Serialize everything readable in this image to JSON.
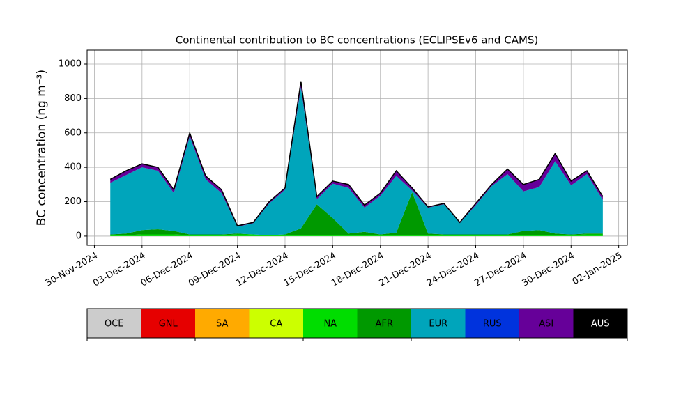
{
  "chart_data": {
    "type": "stacked_area",
    "title": "Continental contribution to BC concentrations (ECLIPSEv6 and CAMS)",
    "y_label": "BC concentration (ng m⁻³)",
    "x": [
      "2024-12-01",
      "2024-12-02",
      "2024-12-03",
      "2024-12-04",
      "2024-12-05",
      "2024-12-06",
      "2024-12-07",
      "2024-12-08",
      "2024-12-09",
      "2024-12-10",
      "2024-12-11",
      "2024-12-12",
      "2024-12-13",
      "2024-12-14",
      "2024-12-15",
      "2024-12-16",
      "2024-12-17",
      "2024-12-18",
      "2024-12-19",
      "2024-12-20",
      "2024-12-21",
      "2024-12-22",
      "2024-12-23",
      "2024-12-24",
      "2024-12-25",
      "2024-12-26",
      "2024-12-27",
      "2024-12-28",
      "2024-12-29",
      "2024-12-30",
      "2024-12-31",
      "2025-01-01"
    ],
    "series": [
      {
        "name": "OCE",
        "color": "#cccccc",
        "values": [
          0,
          0,
          0,
          0,
          0,
          0,
          0,
          0,
          0,
          0,
          0,
          0,
          0,
          0,
          0,
          0,
          0,
          0,
          0,
          0,
          0,
          0,
          0,
          0,
          0,
          0,
          0,
          0,
          0,
          0,
          0,
          0
        ]
      },
      {
        "name": "GNL",
        "color": "#e60000",
        "values": [
          0,
          0,
          0,
          0,
          0,
          0,
          0,
          0,
          0,
          0,
          0,
          0,
          0,
          0,
          0,
          0,
          0,
          0,
          0,
          0,
          0,
          0,
          0,
          0,
          0,
          0,
          0,
          0,
          0,
          0,
          0,
          0
        ]
      },
      {
        "name": "SA",
        "color": "#ffaa00",
        "values": [
          0,
          0,
          0,
          0,
          0,
          0,
          0,
          0,
          0,
          0,
          0,
          0,
          0,
          0,
          0,
          0,
          0,
          0,
          0,
          0,
          0,
          0,
          0,
          0,
          0,
          0,
          0,
          0,
          0,
          0,
          0,
          0
        ]
      },
      {
        "name": "CA",
        "color": "#ccff00",
        "values": [
          0,
          0,
          0,
          0,
          0,
          0,
          0,
          0,
          0,
          0,
          0,
          0,
          0,
          0,
          0,
          0,
          0,
          0,
          0,
          0,
          0,
          0,
          0,
          0,
          0,
          0,
          0,
          0,
          0,
          0,
          0,
          0
        ]
      },
      {
        "name": "NA",
        "color": "#00dd00",
        "values": [
          5,
          5,
          10,
          10,
          10,
          5,
          5,
          5,
          10,
          10,
          5,
          5,
          5,
          5,
          5,
          5,
          5,
          5,
          5,
          5,
          5,
          5,
          5,
          5,
          5,
          5,
          5,
          5,
          5,
          5,
          10,
          10
        ]
      },
      {
        "name": "AFR",
        "color": "#009900",
        "values": [
          5,
          10,
          25,
          30,
          20,
          5,
          5,
          5,
          5,
          0,
          0,
          5,
          40,
          180,
          100,
          10,
          20,
          5,
          15,
          250,
          10,
          5,
          5,
          5,
          5,
          5,
          25,
          30,
          10,
          5,
          5,
          5
        ]
      },
      {
        "name": "EUR",
        "color": "#00a5bb",
        "values": [
          300,
          340,
          365,
          340,
          220,
          570,
          320,
          240,
          40,
          65,
          185,
          260,
          820,
          30,
          200,
          265,
          140,
          225,
          330,
          10,
          150,
          175,
          65,
          170,
          280,
          350,
          230,
          250,
          420,
          285,
          345,
          195
        ]
      },
      {
        "name": "RUS",
        "color": "#0033dd",
        "values": [
          0,
          0,
          0,
          0,
          0,
          0,
          0,
          0,
          0,
          0,
          0,
          0,
          0,
          0,
          0,
          0,
          0,
          0,
          0,
          0,
          0,
          0,
          0,
          0,
          0,
          0,
          0,
          0,
          0,
          0,
          0,
          0
        ]
      },
      {
        "name": "ASI",
        "color": "#660099",
        "values": [
          20,
          25,
          20,
          20,
          20,
          20,
          20,
          20,
          5,
          5,
          10,
          10,
          35,
          15,
          15,
          20,
          15,
          15,
          30,
          15,
          5,
          5,
          5,
          10,
          10,
          30,
          40,
          45,
          45,
          25,
          20,
          20
        ]
      },
      {
        "name": "AUS",
        "color": "#000000",
        "values": [
          0,
          0,
          0,
          0,
          0,
          0,
          0,
          0,
          0,
          0,
          0,
          0,
          0,
          0,
          0,
          0,
          0,
          0,
          0,
          0,
          0,
          0,
          0,
          0,
          0,
          0,
          0,
          0,
          0,
          0,
          0,
          0
        ]
      }
    ],
    "xlim": [
      "2024-11-29T13:00",
      "2025-01-02T13:00"
    ],
    "xticks": [
      {
        "value": "2024-11-30",
        "label": "30-Nov-2024"
      },
      {
        "value": "2024-12-03",
        "label": "03-Dec-2024"
      },
      {
        "value": "2024-12-06",
        "label": "06-Dec-2024"
      },
      {
        "value": "2024-12-09",
        "label": "09-Dec-2024"
      },
      {
        "value": "2024-12-12",
        "label": "12-Dec-2024"
      },
      {
        "value": "2024-12-15",
        "label": "15-Dec-2024"
      },
      {
        "value": "2024-12-18",
        "label": "18-Dec-2024"
      },
      {
        "value": "2024-12-21",
        "label": "21-Dec-2024"
      },
      {
        "value": "2024-12-24",
        "label": "24-Dec-2024"
      },
      {
        "value": "2024-12-27",
        "label": "27-Dec-2024"
      },
      {
        "value": "2024-12-30",
        "label": "30-Dec-2024"
      },
      {
        "value": "2025-01-02",
        "label": "02-Jan-2025"
      }
    ],
    "ylim": [
      -53,
      1081
    ],
    "yticks": [
      0,
      200,
      400,
      600,
      800,
      1000
    ],
    "grid": true
  }
}
